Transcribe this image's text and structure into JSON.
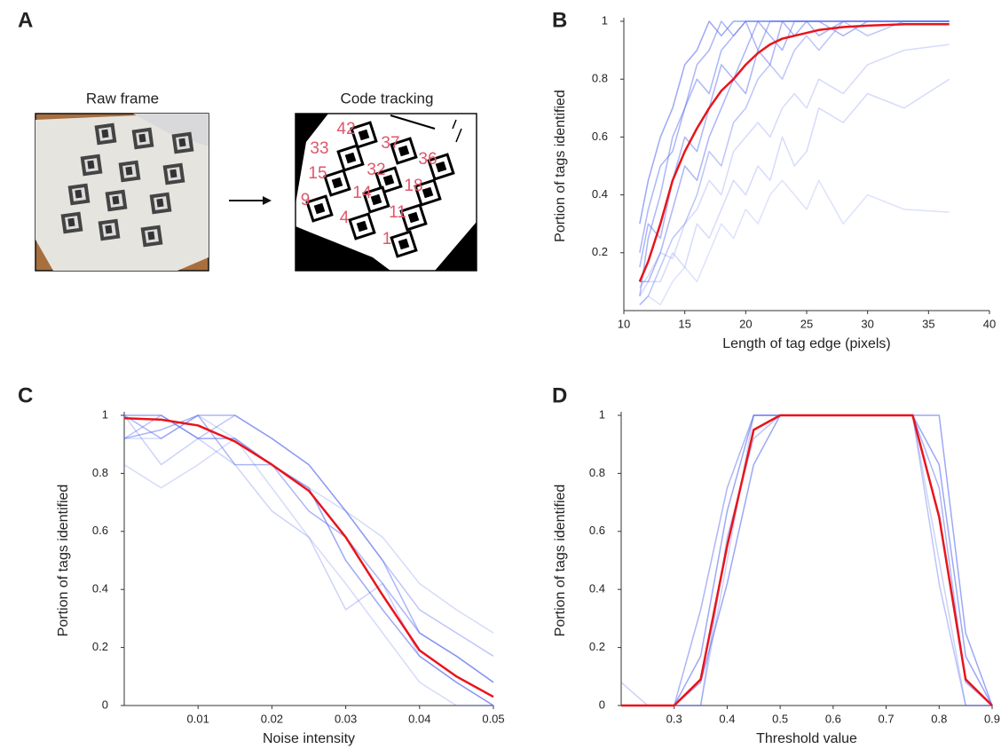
{
  "panel_a": {
    "panel": "A",
    "raw_title": "Raw frame",
    "tracking_title": "Code tracking",
    "tag_ids": [
      42,
      37,
      33,
      36,
      15,
      32,
      18,
      9,
      14,
      11,
      4,
      1
    ]
  },
  "chart_data": [
    {
      "type": "line",
      "panel": "B",
      "x_label": "Length of tag edge (pixels)",
      "y_label": "Portion of tags identified",
      "x": [
        11.3,
        12,
        13,
        14,
        15,
        16,
        17,
        18,
        19,
        20,
        21,
        22,
        23,
        24,
        25,
        26,
        28,
        30,
        33,
        36.7
      ],
      "xlim": [
        10,
        40
      ],
      "xticks": [
        10,
        15,
        20,
        25,
        30,
        35,
        40
      ],
      "ylim": [
        0,
        1
      ],
      "yticks": [
        0.2,
        0.4,
        0.6,
        0.8,
        1
      ],
      "series": [
        {
          "color": "#5a6ef0",
          "opacity": 0.5,
          "width": 1.5,
          "values": [
            0.05,
            0.25,
            0.4,
            0.6,
            0.7,
            0.85,
            0.9,
            1,
            0.95,
            1,
            1,
            1,
            1,
            1,
            1,
            1,
            1,
            1,
            1,
            1
          ]
        },
        {
          "color": "#5a6ef0",
          "opacity": 0.5,
          "width": 1.5,
          "values": [
            0.1,
            0.1,
            0.2,
            0.35,
            0.5,
            0.45,
            0.6,
            0.7,
            0.8,
            0.75,
            0.9,
            0.85,
            1,
            0.95,
            1,
            1,
            1,
            1,
            1,
            1
          ]
        },
        {
          "color": "#5a6ef0",
          "opacity": 0.5,
          "width": 1.5,
          "values": [
            0.2,
            0.35,
            0.5,
            0.55,
            0.7,
            0.8,
            0.75,
            0.9,
            0.95,
            1,
            0.9,
            1,
            1,
            1,
            1,
            0.95,
            1,
            1,
            1,
            1
          ]
        },
        {
          "color": "#5a6ef0",
          "opacity": 0.4,
          "width": 1.5,
          "values": [
            0.02,
            0.05,
            0.15,
            0.25,
            0.3,
            0.4,
            0.55,
            0.5,
            0.65,
            0.7,
            0.8,
            0.85,
            0.8,
            0.9,
            0.95,
            0.9,
            1,
            0.95,
            1,
            1
          ]
        },
        {
          "color": "#5a6ef0",
          "opacity": 0.5,
          "width": 1.5,
          "values": [
            0.15,
            0.3,
            0.25,
            0.45,
            0.6,
            0.55,
            0.7,
            0.85,
            0.8,
            0.9,
            1,
            0.95,
            0.9,
            1,
            1,
            1,
            0.95,
            1,
            1,
            1
          ]
        },
        {
          "color": "#5a6ef0",
          "opacity": 0.25,
          "width": 1.5,
          "values": [
            0.05,
            0.1,
            0.1,
            0.2,
            0.15,
            0.3,
            0.25,
            0.35,
            0.45,
            0.4,
            0.5,
            0.45,
            0.6,
            0.5,
            0.55,
            0.7,
            0.65,
            0.75,
            0.7,
            0.8
          ]
        },
        {
          "color": "#5a6ef0",
          "opacity": 0.2,
          "width": 1.5,
          "values": [
            0.02,
            0.05,
            0.02,
            0.1,
            0.15,
            0.1,
            0.2,
            0.3,
            0.25,
            0.35,
            0.3,
            0.4,
            0.45,
            0.4,
            0.35,
            0.45,
            0.3,
            0.4,
            0.35,
            0.34
          ]
        },
        {
          "color": "#5a6ef0",
          "opacity": 0.6,
          "width": 1.5,
          "values": [
            0.3,
            0.45,
            0.6,
            0.7,
            0.85,
            0.9,
            1,
            0.95,
            1,
            1,
            1,
            1,
            1,
            1,
            1,
            1,
            1,
            1,
            1,
            1
          ]
        },
        {
          "color": "#5a6ef0",
          "opacity": 0.25,
          "width": 1.5,
          "values": [
            0.08,
            0.12,
            0.2,
            0.18,
            0.3,
            0.35,
            0.45,
            0.4,
            0.55,
            0.6,
            0.65,
            0.6,
            0.7,
            0.75,
            0.7,
            0.8,
            0.75,
            0.85,
            0.9,
            0.92
          ]
        },
        {
          "color": "#e8141c",
          "opacity": 1,
          "width": 2.5,
          "values": [
            0.1,
            0.17,
            0.3,
            0.45,
            0.55,
            0.63,
            0.7,
            0.76,
            0.8,
            0.85,
            0.89,
            0.92,
            0.94,
            0.95,
            0.96,
            0.97,
            0.98,
            0.985,
            0.99,
            0.99
          ]
        }
      ]
    },
    {
      "type": "line",
      "panel": "C",
      "x_label": "Noise intensity",
      "y_label": "Portion of tags identified",
      "x": [
        0,
        0.005,
        0.01,
        0.015,
        0.02,
        0.025,
        0.03,
        0.035,
        0.04,
        0.045,
        0.05
      ],
      "xlim": [
        0,
        0.05
      ],
      "xticks": [
        0.01,
        0.02,
        0.03,
        0.04,
        0.05
      ],
      "ylim": [
        0,
        1
      ],
      "yticks": [
        0,
        0.2,
        0.4,
        0.6,
        0.8,
        1
      ],
      "series": [
        {
          "color": "#5a6ef0",
          "opacity": 0.5,
          "width": 1.5,
          "values": [
            0.92,
            0.95,
            1,
            1,
            0.92,
            0.83,
            0.67,
            0.5,
            0.25,
            0.17,
            0.08
          ]
        },
        {
          "color": "#5a6ef0",
          "opacity": 0.6,
          "width": 1.5,
          "values": [
            1,
            1,
            0.92,
            0.92,
            0.83,
            0.75,
            0.5,
            0.33,
            0.17,
            0.08,
            0
          ]
        },
        {
          "color": "#5a6ef0",
          "opacity": 0.25,
          "width": 1.5,
          "values": [
            0.83,
            0.75,
            0.83,
            0.92,
            0.75,
            0.58,
            0.42,
            0.25,
            0.08,
            0,
            0
          ]
        },
        {
          "color": "#5a6ef0",
          "opacity": 0.5,
          "width": 1.5,
          "values": [
            1,
            0.92,
            1,
            0.83,
            0.83,
            0.67,
            0.58,
            0.42,
            0.25,
            0.17,
            0.08
          ]
        },
        {
          "color": "#5a6ef0",
          "opacity": 0.4,
          "width": 1.5,
          "values": [
            0.92,
            1,
            0.92,
            1,
            0.92,
            0.83,
            0.67,
            0.5,
            0.33,
            0.25,
            0.17
          ]
        },
        {
          "color": "#5a6ef0",
          "opacity": 0.3,
          "width": 1.5,
          "values": [
            1,
            0.83,
            0.92,
            0.83,
            0.67,
            0.58,
            0.33,
            0.42,
            0.17,
            0.08,
            0
          ]
        },
        {
          "color": "#5a6ef0",
          "opacity": 0.25,
          "width": 1.5,
          "values": [
            0.92,
            0.92,
            1,
            0.92,
            0.83,
            0.75,
            0.67,
            0.58,
            0.42,
            0.33,
            0.25
          ]
        },
        {
          "color": "#e8141c",
          "opacity": 1,
          "width": 2.5,
          "values": [
            0.99,
            0.985,
            0.965,
            0.91,
            0.83,
            0.74,
            0.58,
            0.38,
            0.19,
            0.1,
            0.03
          ]
        }
      ]
    },
    {
      "type": "line",
      "panel": "D",
      "x_label": "Threshold value",
      "y_label": "Portion of tags identified",
      "x": [
        0.2,
        0.25,
        0.3,
        0.35,
        0.4,
        0.45,
        0.5,
        0.55,
        0.6,
        0.65,
        0.7,
        0.75,
        0.8,
        0.85,
        0.9
      ],
      "xlim": [
        0.2,
        0.9
      ],
      "xticks": [
        0.3,
        0.4,
        0.5,
        0.6,
        0.7,
        0.8,
        0.9
      ],
      "ylim": [
        0,
        1
      ],
      "yticks": [
        0,
        0.2,
        0.4,
        0.6,
        0.8,
        1
      ],
      "series": [
        {
          "color": "#5a6ef0",
          "opacity": 0.6,
          "width": 1.5,
          "values": [
            0,
            0,
            0,
            0.17,
            0.67,
            1,
            1,
            1,
            1,
            1,
            1,
            1,
            0.83,
            0.17,
            0
          ]
        },
        {
          "color": "#5a6ef0",
          "opacity": 0.3,
          "width": 1.5,
          "values": [
            0.08,
            0,
            0,
            0,
            0.5,
            1,
            1,
            1,
            1,
            1,
            1,
            1,
            0.5,
            0,
            0
          ]
        },
        {
          "color": "#5a6ef0",
          "opacity": 0.5,
          "width": 1.5,
          "values": [
            0,
            0,
            0,
            0.33,
            0.75,
            1,
            1,
            1,
            1,
            1,
            1,
            1,
            0.75,
            0.08,
            0
          ]
        },
        {
          "color": "#5a6ef0",
          "opacity": 0.6,
          "width": 1.5,
          "values": [
            0,
            0,
            0,
            0.08,
            0.42,
            0.83,
            1,
            1,
            1,
            1,
            1,
            1,
            1,
            0.25,
            0
          ]
        },
        {
          "color": "#5a6ef0",
          "opacity": 0.4,
          "width": 1.5,
          "values": [
            0,
            0,
            0,
            0,
            0.58,
            0.92,
            1,
            1,
            1,
            1,
            1,
            1,
            0.42,
            0,
            0
          ]
        },
        {
          "color": "#e8141c",
          "opacity": 1,
          "width": 2.5,
          "values": [
            0,
            0,
            0,
            0.09,
            0.55,
            0.95,
            1,
            1,
            1,
            1,
            1,
            1,
            0.65,
            0.09,
            0
          ]
        }
      ]
    }
  ]
}
